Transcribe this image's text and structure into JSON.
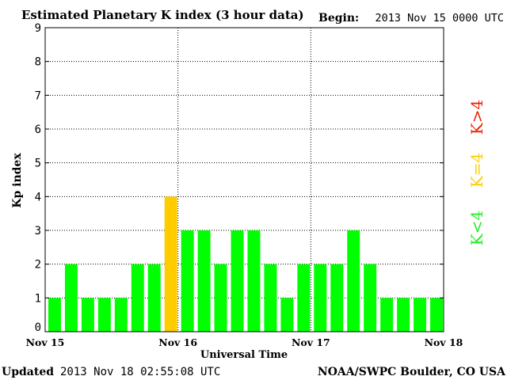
{
  "chart_data": {
    "type": "bar",
    "title": "Estimated Planetary K index (3 hour data)",
    "begin_label": "Begin:",
    "begin_value": "2013 Nov 15 0000 UTC",
    "xlabel": "Universal Time",
    "ylabel": "Kp index",
    "ylim": [
      0,
      9
    ],
    "y_ticks": [
      "0",
      "1",
      "2",
      "3",
      "4",
      "5",
      "6",
      "7",
      "8",
      "9"
    ],
    "x_tick_labels": [
      "Nov 15",
      "Nov 16",
      "Nov 17",
      "Nov 18"
    ],
    "grid": true,
    "values": [
      1,
      2,
      1,
      1,
      1,
      2,
      2,
      4,
      3,
      3,
      2,
      3,
      3,
      2,
      1,
      2,
      2,
      2,
      3,
      2,
      1,
      1,
      1,
      1
    ],
    "legend": [
      {
        "label": "K<4",
        "color": "#22ee22"
      },
      {
        "label": "K=4",
        "color": "#ffcc00"
      },
      {
        "label": "K>4",
        "color": "#ee2200"
      }
    ],
    "colors": {
      "below4": "#00ff00",
      "equal4": "#ffcc00",
      "above4": "#ff2200"
    },
    "updated_label": "Updated",
    "updated_value": "2013 Nov 18 02:55:08 UTC",
    "credit": "NOAA/SWPC Boulder, CO USA"
  }
}
